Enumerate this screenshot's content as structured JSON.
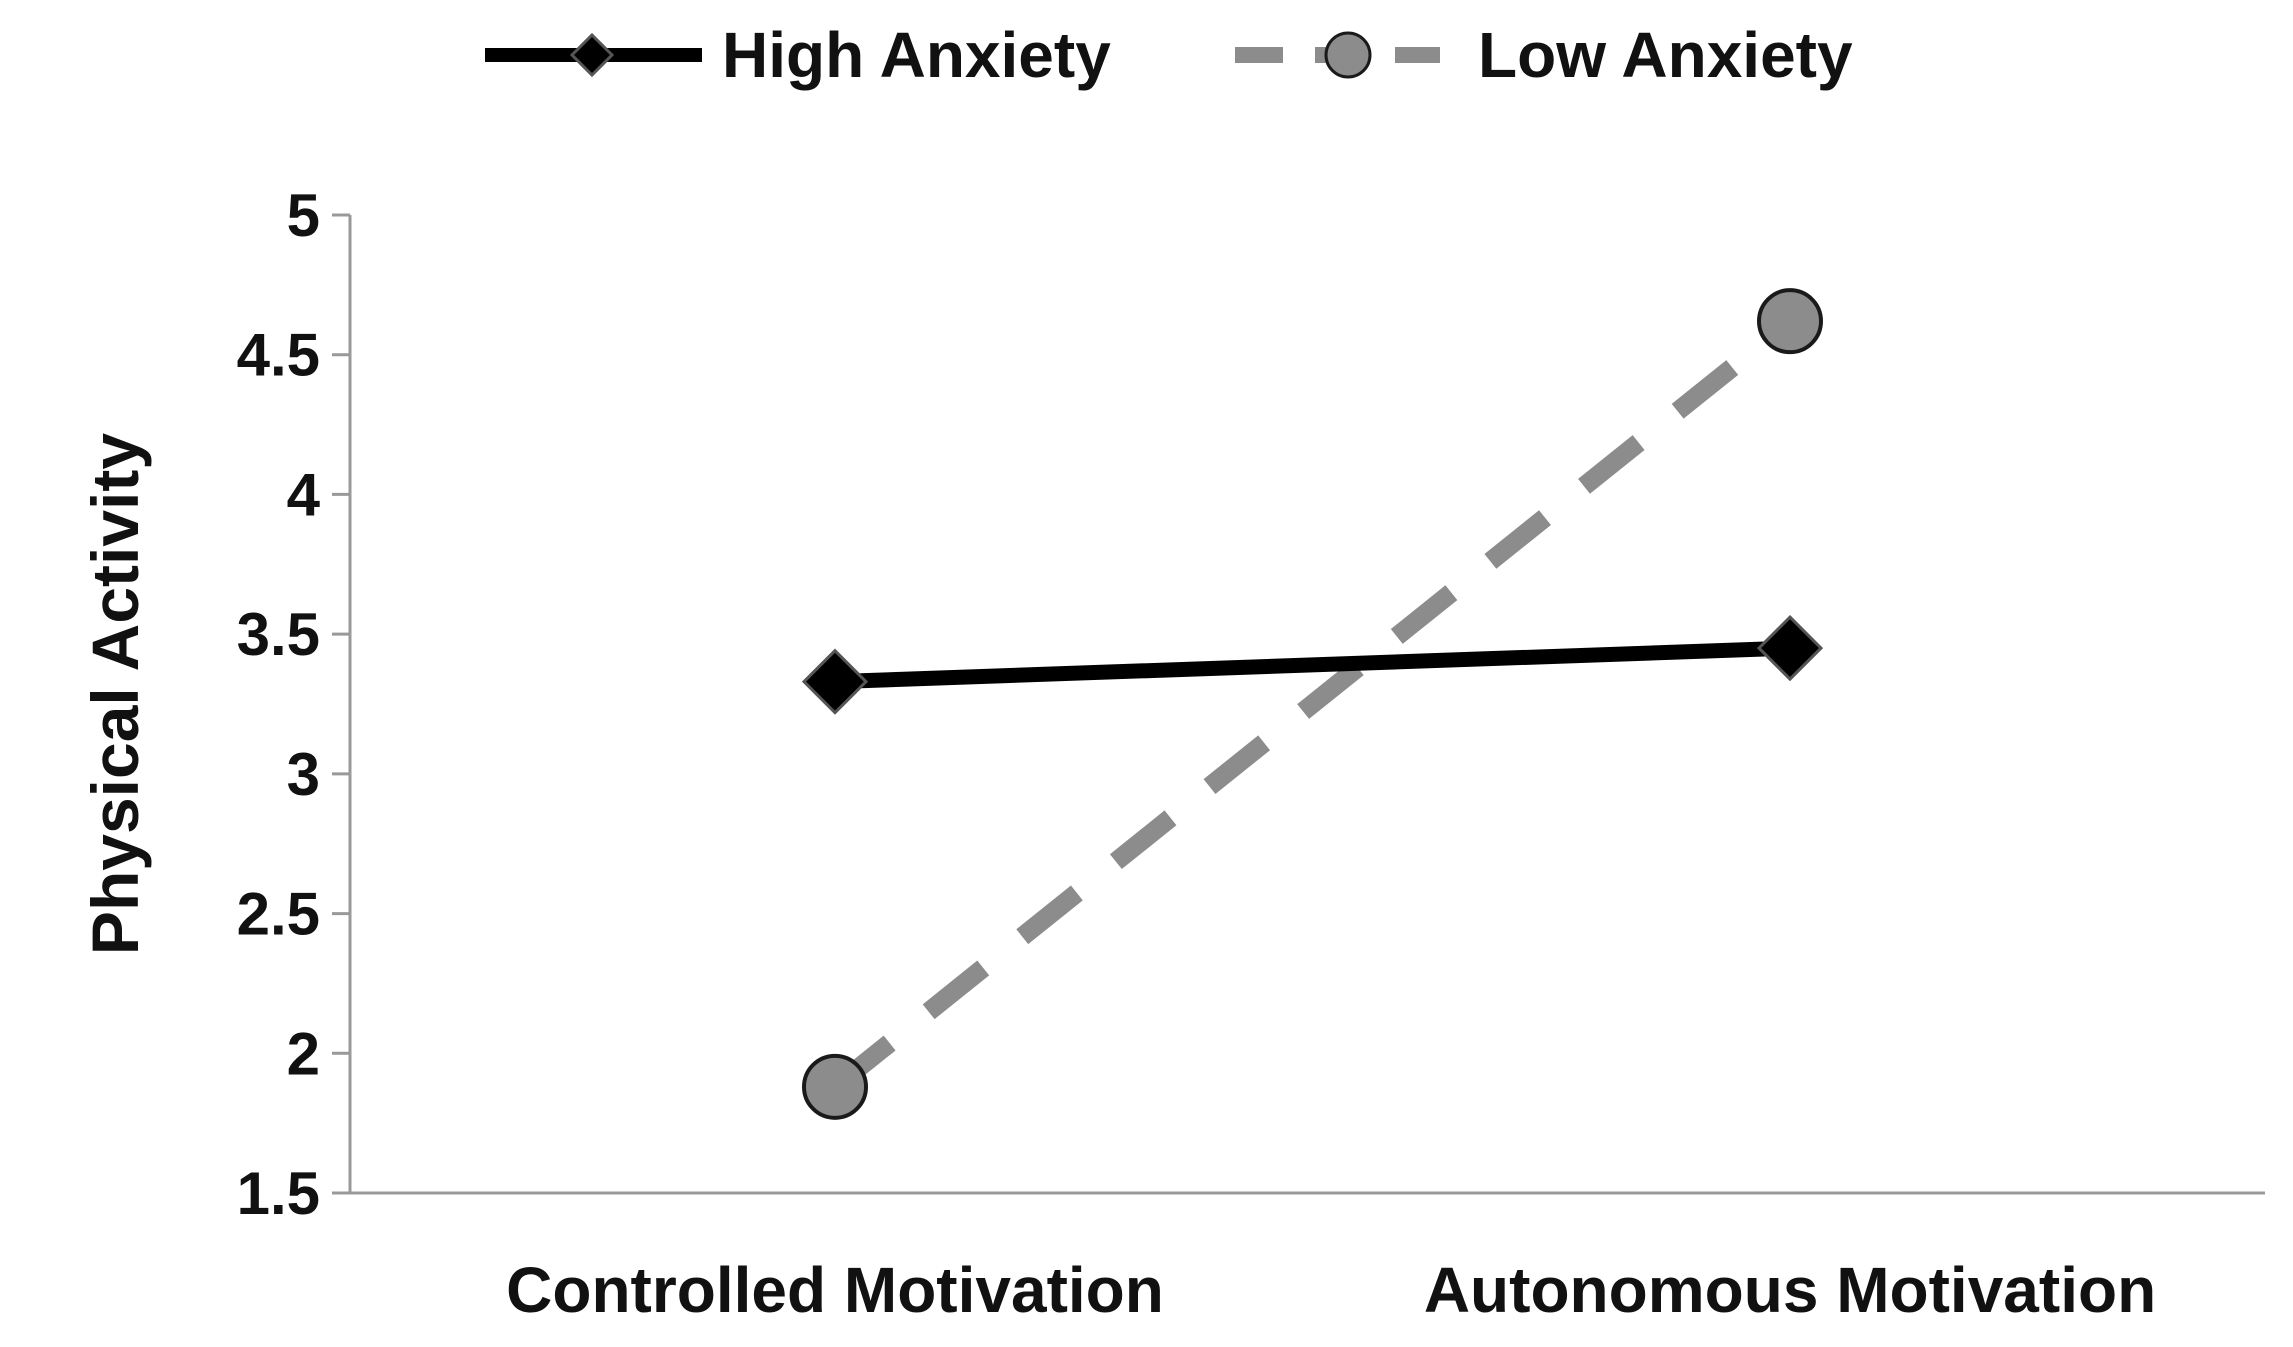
{
  "chart_data": {
    "type": "line",
    "categories": [
      "Controlled Motivation",
      "Autonomous Motivation"
    ],
    "series": [
      {
        "name": "High Anxiety",
        "values": [
          3.33,
          3.45
        ],
        "color": "#000000",
        "line_style": "solid",
        "marker": "diamond",
        "marker_color": "#000000"
      },
      {
        "name": "Low Anxiety",
        "values": [
          1.88,
          4.62
        ],
        "color": "#8c8c8c",
        "line_style": "dashed",
        "marker": "circle",
        "marker_color": "#8c8c8c"
      }
    ],
    "ylabel": "Physical Activity",
    "xlabel": "",
    "ylim": [
      1.5,
      5
    ],
    "yticks": [
      "1.5",
      "2",
      "2.5",
      "3",
      "3.5",
      "4",
      "4.5",
      "5"
    ],
    "grid": false,
    "legend_position": "top"
  }
}
